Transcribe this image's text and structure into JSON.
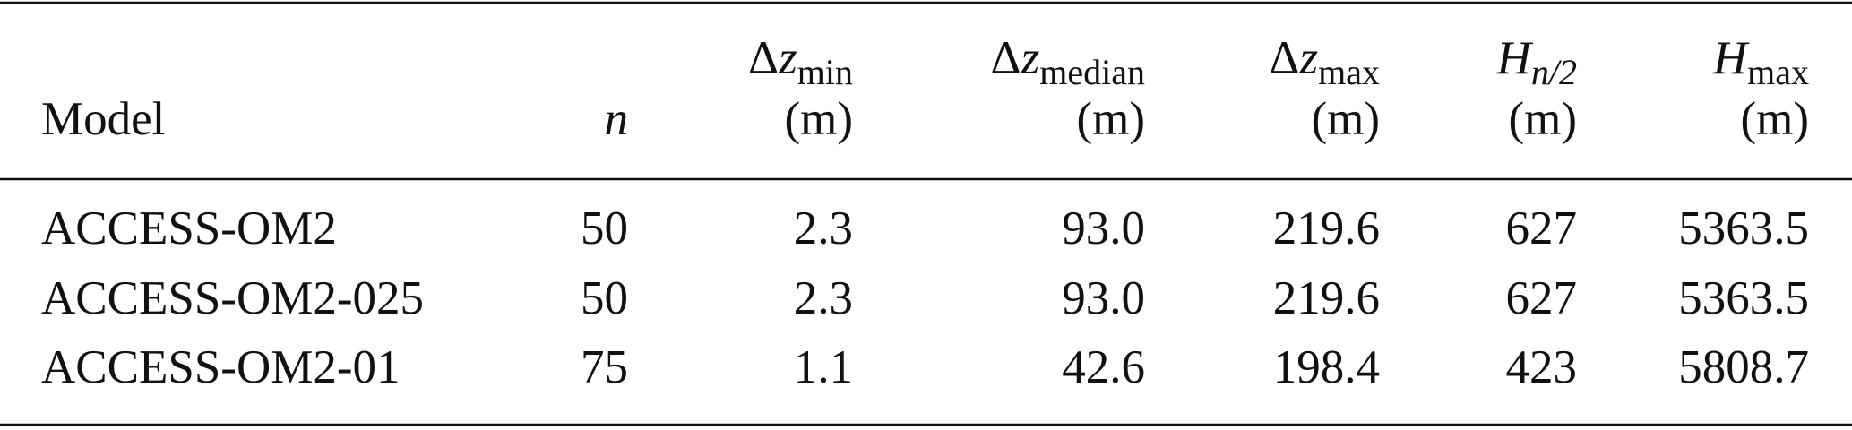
{
  "table": {
    "header": [
      {
        "label": "Model"
      },
      {
        "symbol": "n"
      },
      {
        "prefix": "Δ",
        "symbol": "z",
        "sub": "min",
        "unit": "(m)"
      },
      {
        "prefix": "Δ",
        "symbol": "z",
        "sub": "median",
        "unit": "(m)"
      },
      {
        "prefix": "Δ",
        "symbol": "z",
        "sub": "max",
        "unit": "(m)"
      },
      {
        "symbol": "H",
        "sub_italic": "n/2",
        "unit": "(m)"
      },
      {
        "symbol": "H",
        "sub": "max",
        "unit": "(m)"
      }
    ],
    "rows": [
      [
        "ACCESS-OM2",
        "50",
        "2.3",
        "93.0",
        "219.6",
        "627",
        "5363.5"
      ],
      [
        "ACCESS-OM2-025",
        "50",
        "2.3",
        "93.0",
        "219.6",
        "627",
        "5363.5"
      ],
      [
        "ACCESS-OM2-01",
        "75",
        "1.1",
        "42.6",
        "198.4",
        "423",
        "5808.7"
      ]
    ]
  }
}
